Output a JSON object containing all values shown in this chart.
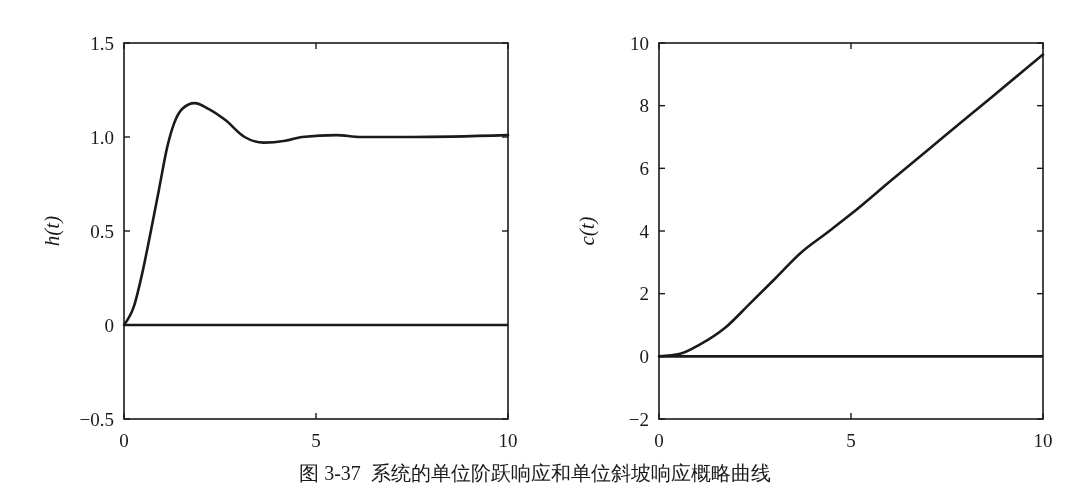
{
  "chart_data": [
    {
      "type": "line",
      "ylabel": "h(t)",
      "x": [
        0,
        0.26,
        0.48,
        0.69,
        0.91,
        1.13,
        1.3,
        1.52,
        1.84,
        2.2,
        2.64,
        3.14,
        3.64,
        4.2,
        4.64,
        5.54,
        6.14,
        7.5,
        10
      ],
      "values": [
        0,
        0.1,
        0.28,
        0.49,
        0.72,
        0.95,
        1.07,
        1.15,
        1.18,
        1.15,
        1.09,
        1.0,
        0.97,
        0.98,
        1.0,
        1.01,
        1.0,
        1.0,
        1.01
      ],
      "color": "#1a1a1a",
      "xlim": [
        0,
        10
      ],
      "xticks": [
        0,
        5,
        10
      ],
      "ylim": [
        -0.5,
        1.5
      ],
      "yticks": [
        {
          "value": -0.5,
          "label": "−0.5"
        },
        0,
        0.5,
        {
          "value": 1,
          "label": "1.0"
        },
        1.5
      ],
      "ref_lines": [
        {
          "axis": "y",
          "value": 0,
          "color": "#1a1a1a"
        }
      ],
      "annotations": [
        "图 3-37  系统的单位阶跃响应和单位斜坡响应概略曲线"
      ]
    },
    {
      "type": "line",
      "ylabel": "c(t)",
      "x": [
        0,
        0.55,
        1.07,
        1.73,
        2.38,
        3.04,
        3.69,
        4.35,
        5.0,
        6.05,
        7.36,
        8.67,
        10
      ],
      "values": [
        0,
        0.08,
        0.38,
        0.92,
        1.7,
        2.5,
        3.3,
        3.92,
        4.54,
        5.62,
        6.95,
        8.28,
        9.63
      ],
      "color": "#1a1a1a",
      "xlim": [
        0,
        10
      ],
      "xticks": [
        0,
        5,
        10
      ],
      "ylim": [
        -2,
        10
      ],
      "yticks": [
        {
          "value": -2,
          "label": "−2"
        },
        0,
        2,
        4,
        6,
        8,
        10
      ],
      "ref_lines": [
        {
          "axis": "y",
          "value": 0,
          "color": "#1a1a1a"
        }
      ]
    }
  ]
}
